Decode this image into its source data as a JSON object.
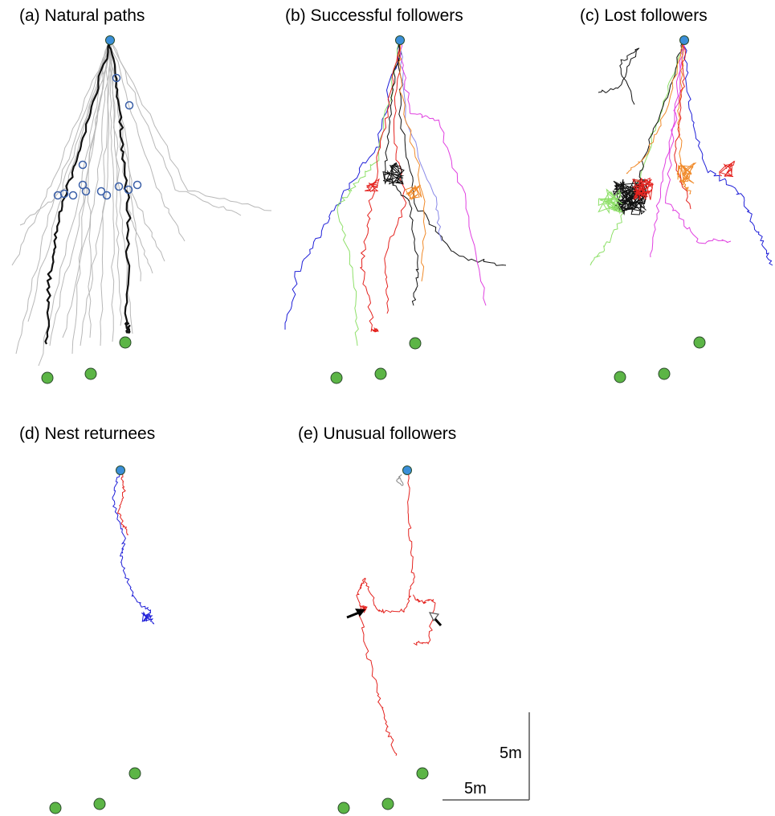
{
  "panels": {
    "a": {
      "title": "(a) Natural paths"
    },
    "b": {
      "title": "(b) Successful followers"
    },
    "c": {
      "title": "(c) Lost followers"
    },
    "d": {
      "title": "(d) Nest returnees"
    },
    "e": {
      "title": "(e) Unusual followers"
    }
  },
  "scale_bar": {
    "vertical_label": "5m",
    "horizontal_label": "5m"
  },
  "colors": {
    "nest": "#3b8fd9",
    "target": "#5cb546",
    "natural_path": "#b8b8b8",
    "natural_path_highlight": "#111111",
    "natural_marker": "#3a5fa8",
    "red": "#e4231f",
    "blue": "#2020d8",
    "magenta": "#e040e0",
    "green": "#8fe06a",
    "orange": "#f08a2a",
    "lavender": "#8a8ae8",
    "black": "#111111",
    "gray": "#888888"
  }
}
